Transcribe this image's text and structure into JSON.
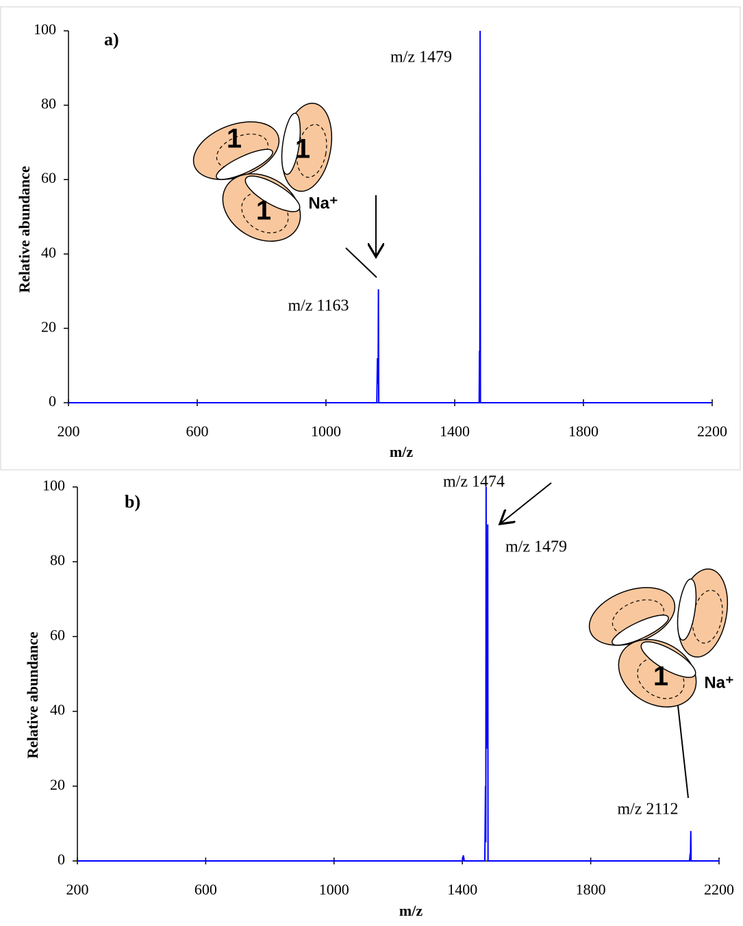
{
  "chart_data": [
    {
      "type": "line",
      "panel_label": "a)",
      "x_label": "m/z",
      "y_label": "Relative abundance",
      "x": [
        200,
        1150,
        1158,
        1160,
        1162,
        1163,
        1164,
        1166,
        1470,
        1476,
        1477,
        1478,
        1479,
        1480,
        1482,
        2200
      ],
      "values": [
        0,
        0,
        0,
        12,
        5,
        30.5,
        0,
        0,
        0,
        0,
        14,
        5,
        100,
        0,
        0,
        0
      ],
      "color": "#0000ff",
      "xlim": [
        200,
        2200
      ],
      "xticks": [
        200,
        600,
        1000,
        1400,
        1800,
        2200
      ],
      "ylim": [
        0,
        100
      ],
      "yticks": [
        0,
        20,
        40,
        60,
        80,
        100
      ],
      "annotations": [
        "m/z 1479",
        "m/z 1163"
      ],
      "diagram_labels": [
        "1",
        "1",
        "1",
        "Na⁺"
      ]
    },
    {
      "type": "line",
      "panel_label": "b)",
      "x_label": "m/z",
      "y_label": "Relative abundance",
      "x": [
        200,
        1400,
        1403,
        1406,
        1465,
        1470,
        1472,
        1473,
        1474,
        1475,
        1477,
        1479,
        1480,
        1485,
        2100,
        2108,
        2110,
        2111,
        2112,
        2113,
        2200
      ],
      "values": [
        0,
        0,
        1.5,
        0,
        0,
        0,
        20,
        5,
        100,
        30,
        40,
        90,
        0,
        0,
        0,
        0,
        2,
        1,
        8,
        0,
        0
      ],
      "color": "#0000ff",
      "xlim": [
        200,
        2200
      ],
      "xticks": [
        200,
        600,
        1000,
        1400,
        1800,
        2200
      ],
      "ylim": [
        0,
        100
      ],
      "yticks": [
        0,
        20,
        40,
        60,
        80,
        100
      ],
      "annotations": [
        "m/z 1474",
        "m/z 1479",
        "m/z 2112"
      ],
      "diagram_labels": [
        "1",
        "Na⁺"
      ]
    }
  ]
}
